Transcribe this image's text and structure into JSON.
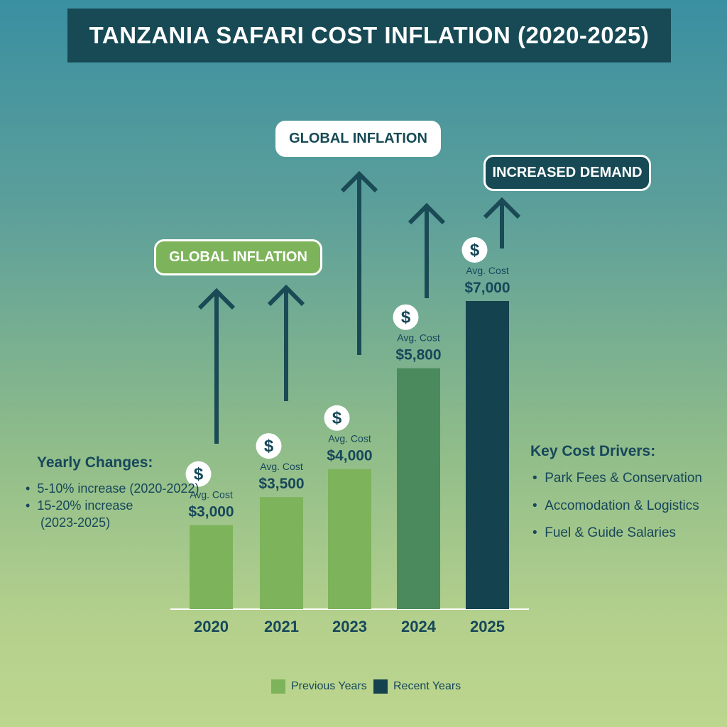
{
  "title": "TANZANIA SAFARI COST INFLATION (2020-2025)",
  "callouts": [
    "GLOBAL INFLATION",
    "GLOBAL INFLATION",
    "INCREASED DEMAND"
  ],
  "yearly": {
    "heading": "Yearly Changes:",
    "items": [
      "5-10% increase (2020-2022)",
      "15-20% increase",
      "(2023-2025)"
    ]
  },
  "drivers": {
    "heading": "Key Cost Drivers:",
    "items": [
      "Park Fees & Conservation",
      "Accomodation & Logistics",
      "Fuel & Guide Salaries"
    ]
  },
  "colors": {
    "previous": "#7db35a",
    "mid": "#4a8a5c",
    "recent": "#14424f",
    "arrow": "#1a4a55"
  },
  "chart_data": {
    "type": "bar",
    "title": "TANZANIA SAFARI COST INFLATION (2020-2025)",
    "categories": [
      "2020",
      "2021",
      "2023",
      "2024",
      "2025"
    ],
    "values": [
      3000,
      3500,
      4000,
      5800,
      7000
    ],
    "value_labels": [
      "$3,000",
      "$3,500",
      "$4,000",
      "$5,800",
      "$7,000"
    ],
    "bar_label": "Avg. Cost",
    "series_type": [
      "previous",
      "previous",
      "previous",
      "mid",
      "recent"
    ],
    "ylim": [
      1500,
      7000
    ],
    "legend": [
      "Previous Years",
      "Recent Years"
    ],
    "legend_position": "bottom"
  }
}
